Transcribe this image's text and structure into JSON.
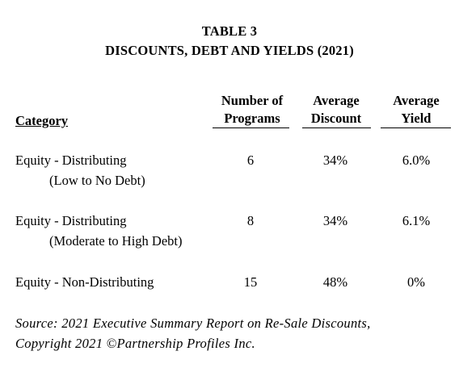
{
  "title": {
    "line1": "TABLE 3",
    "line2": "DISCOUNTS, DEBT AND YIELDS (2021)"
  },
  "table": {
    "headers": {
      "category": "Category",
      "programs_line1": "Number of",
      "programs_line2": "Programs",
      "discount_line1": "Average",
      "discount_line2": "Discount",
      "yield_line1": "Average",
      "yield_line2": "Yield"
    },
    "rows": [
      {
        "category_line1": "Equity - Distributing",
        "category_line2": "(Low to No Debt)",
        "programs": "6",
        "discount": "34%",
        "yield": "6.0%"
      },
      {
        "category_line1": "Equity - Distributing",
        "category_line2": "(Moderate to High Debt)",
        "programs": "8",
        "discount": "34%",
        "yield": "6.1%"
      },
      {
        "category_line1": "Equity - Non-Distributing",
        "category_line2": "",
        "programs": "15",
        "discount": "48%",
        "yield": "0%"
      }
    ]
  },
  "source": {
    "line1": "Source: 2021 Executive Summary Report on Re-Sale Discounts,",
    "line2": "Copyright 2021 ©Partnership Profiles Inc."
  }
}
